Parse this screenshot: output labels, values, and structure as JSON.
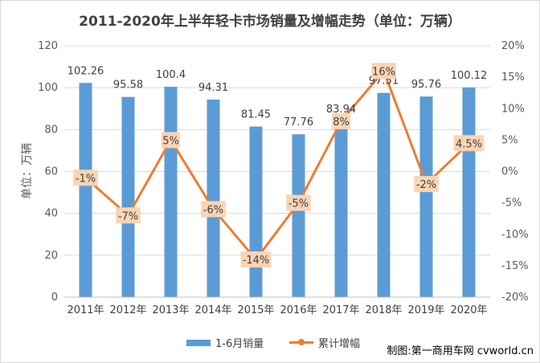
{
  "chart_data": {
    "type": "bar+line",
    "title": "2011-2020年上半年轻卡市场销量及增幅走势（单位：万辆）",
    "ylabel": "单位：万辆",
    "categories": [
      "2011年",
      "2012年",
      "2013年",
      "2014年",
      "2015年",
      "2016年",
      "2017年",
      "2018年",
      "2019年",
      "2020年"
    ],
    "series": [
      {
        "name": "1-6月销量",
        "type": "bar",
        "axis": "left",
        "color": "#5b9bd5",
        "values": [
          102.26,
          95.58,
          100.4,
          94.31,
          81.45,
          77.76,
          83.94,
          97.51,
          95.76,
          100.12
        ],
        "labels": [
          "102.26",
          "95.58",
          "100.4",
          "94.31",
          "81.45",
          "77.76",
          "83.94",
          "97.51",
          "95.76",
          "100.12"
        ]
      },
      {
        "name": "累计增幅",
        "type": "line",
        "axis": "right",
        "color": "#ed7d31",
        "values": [
          -1,
          -7,
          5,
          -6,
          -14,
          -5,
          8,
          16,
          -2,
          4.5
        ],
        "labels": [
          "-1%",
          "-7%",
          "5%",
          "-6%",
          "-14%",
          "-5%",
          "8%",
          "16%",
          "-2%",
          "4.5%"
        ]
      }
    ],
    "y_left": {
      "min": 0,
      "max": 120,
      "ticks": [
        "0",
        "20",
        "40",
        "60",
        "80",
        "100",
        "120"
      ]
    },
    "y_right": {
      "min": -20,
      "max": 20,
      "ticks": [
        "-20%",
        "-15%",
        "-10%",
        "-5%",
        "0%",
        "5%",
        "10%",
        "15%",
        "20%"
      ]
    },
    "grid": true,
    "legend_position": "bottom",
    "label_box_color": "#fbd4b4"
  },
  "source": "制图:第一商用车网 cvworld.cn"
}
